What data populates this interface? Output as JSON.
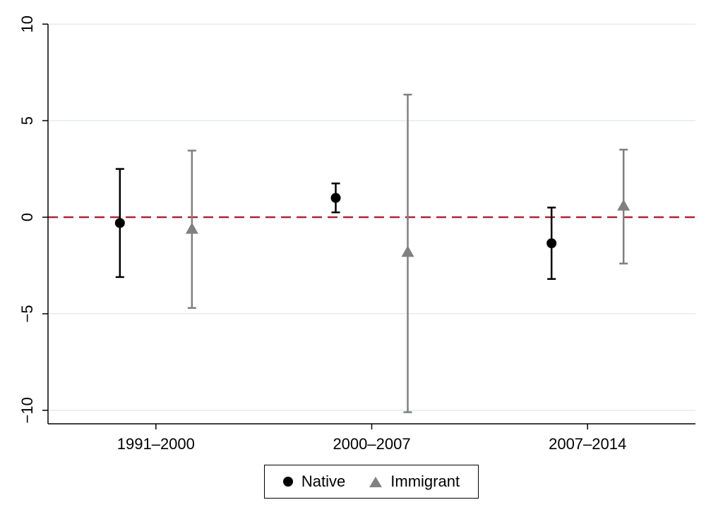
{
  "chart_data": {
    "type": "scatter",
    "subtype": "coefficient-plot-with-error-bars",
    "title": "",
    "xlabel": "",
    "ylabel": "",
    "categories": [
      "1991–2000",
      "2000–2007",
      "2007–2014"
    ],
    "ylim": [
      -10.7,
      10.3
    ],
    "yticks": [
      10,
      5,
      0,
      -5,
      -10
    ],
    "ytick_labels": [
      "10",
      "5",
      "0",
      "−5",
      "−10"
    ],
    "reference_line": {
      "y": 0,
      "color": "#b22234",
      "style": "dashed"
    },
    "grid": true,
    "series": [
      {
        "name": "Native",
        "marker": "circle",
        "color": "#000000",
        "values": [
          -0.3,
          1.0,
          -1.35
        ],
        "lower": [
          -3.1,
          0.25,
          -3.2
        ],
        "upper": [
          2.5,
          1.75,
          0.5
        ]
      },
      {
        "name": "Immigrant",
        "marker": "triangle",
        "color": "#808080",
        "values": [
          -0.6,
          -1.8,
          0.6
        ],
        "lower": [
          -4.7,
          -10.1,
          -2.4
        ],
        "upper": [
          3.45,
          6.35,
          3.5
        ]
      }
    ],
    "legend_position": "bottom"
  }
}
